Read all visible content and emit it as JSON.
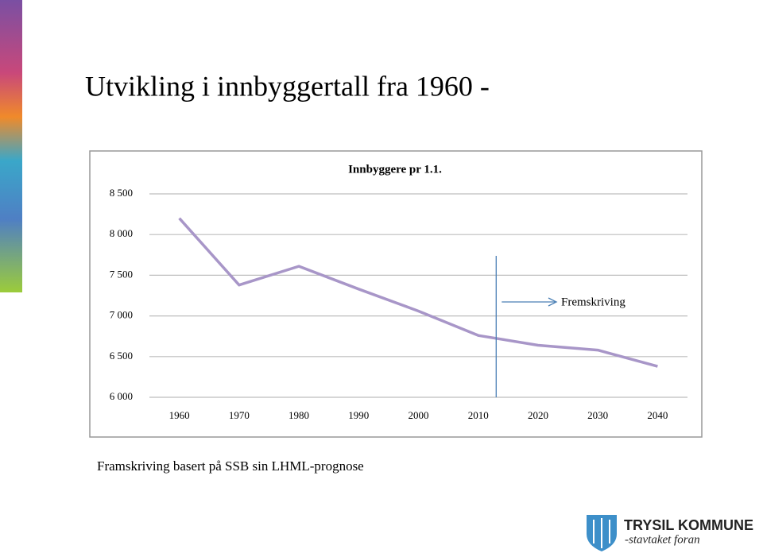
{
  "slide_title": "Utvikling i innbyggertall fra 1960 -",
  "note": "Framskriving basert på SSB sin LHML-prognose",
  "logo": {
    "name": "TRYSIL KOMMUNE",
    "tagline": "-stavtaket foran"
  },
  "chart_data": {
    "type": "line",
    "title": "Innbyggere pr 1.1.",
    "categories": [
      "1960",
      "1970",
      "1980",
      "1990",
      "2000",
      "2010",
      "2020",
      "2030",
      "2040"
    ],
    "series": [
      {
        "name": "Innbyggere",
        "color": "#a896c8",
        "values": [
          8200,
          7380,
          7610,
          7330,
          7060,
          6760,
          6640,
          6580,
          6380
        ]
      }
    ],
    "ylim": [
      6000,
      8500
    ],
    "yticks": [
      {
        "value": 6000,
        "label": "6 000"
      },
      {
        "value": 6500,
        "label": "6 500"
      },
      {
        "value": 7000,
        "label": "7 000"
      },
      {
        "value": 7500,
        "label": "7 500"
      },
      {
        "value": 8000,
        "label": "8 000"
      },
      {
        "value": 8500,
        "label": "8 500"
      }
    ],
    "grid": true,
    "annotation": "Fremskriving"
  }
}
